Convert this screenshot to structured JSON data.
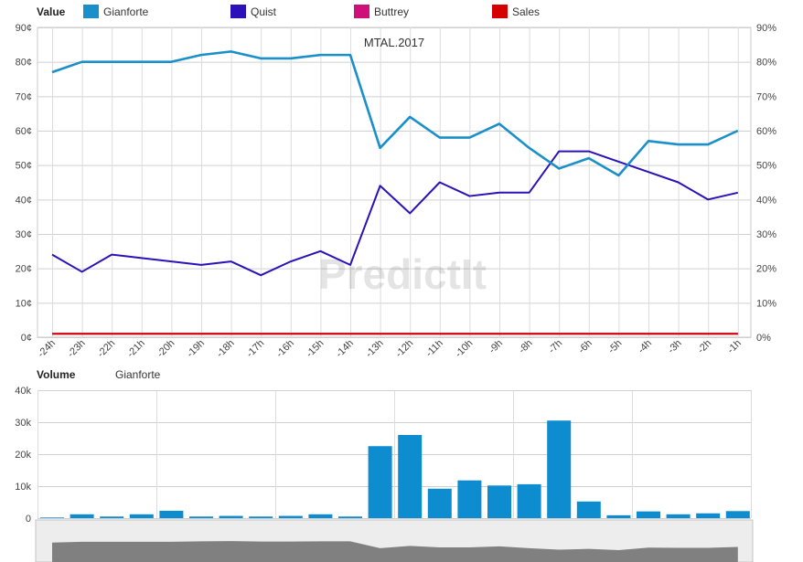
{
  "chart_data": [
    {
      "type": "line",
      "title": "MTAL.2017",
      "legend_title": "Value",
      "legend_position": "top",
      "watermark": "PredictIt",
      "categories": [
        "-24h",
        "-23h",
        "-22h",
        "-21h",
        "-20h",
        "-19h",
        "-18h",
        "-17h",
        "-16h",
        "-15h",
        "-14h",
        "-13h",
        "-12h",
        "-11h",
        "-10h",
        "-9h",
        "-8h",
        "-7h",
        "-6h",
        "-5h",
        "-4h",
        "-3h",
        "-2h",
        "-1h"
      ],
      "ylim": [
        0,
        90
      ],
      "yticks": [
        "0¢",
        "10¢",
        "20¢",
        "30¢",
        "40¢",
        "50¢",
        "60¢",
        "70¢",
        "80¢",
        "90¢"
      ],
      "y2ticks": [
        "0%",
        "10%",
        "20%",
        "30%",
        "40%",
        "50%",
        "60%",
        "70%",
        "80%",
        "90%"
      ],
      "grid": true,
      "series": [
        {
          "name": "Gianforte",
          "color": "#1a8fc9",
          "values": [
            77,
            80,
            80,
            80,
            80,
            82,
            83,
            81,
            81,
            82,
            82,
            55,
            64,
            58,
            58,
            62,
            55,
            49,
            52,
            47,
            57,
            56,
            56,
            60
          ]
        },
        {
          "name": "Quist",
          "color": "#2a12b8",
          "values": [
            24,
            19,
            24,
            23,
            22,
            21,
            22,
            18,
            22,
            25,
            21,
            44,
            36,
            45,
            41,
            42,
            42,
            54,
            54,
            51,
            48,
            45,
            40,
            42
          ]
        },
        {
          "name": "Buttrey",
          "color": "#d0107a",
          "values": [
            1,
            1,
            1,
            1,
            1,
            1,
            1,
            1,
            1,
            1,
            1,
            1,
            1,
            1,
            1,
            1,
            1,
            1,
            1,
            1,
            1,
            1,
            1,
            1
          ]
        },
        {
          "name": "Sales",
          "color": "#d40000",
          "values": [
            1,
            1,
            1,
            1,
            1,
            1,
            1,
            1,
            1,
            1,
            1,
            1,
            1,
            1,
            1,
            1,
            1,
            1,
            1,
            1,
            1,
            1,
            1,
            1
          ]
        }
      ]
    },
    {
      "type": "bar",
      "legend_title": "Volume",
      "series_name": "Gianforte",
      "color": "#0d8ccf",
      "ylim": [
        0,
        40000
      ],
      "yticks": [
        "0",
        "10k",
        "20k",
        "30k",
        "40k"
      ],
      "values": [
        200,
        1200,
        500,
        1200,
        2300,
        500,
        700,
        500,
        700,
        1200,
        500,
        22500,
        26000,
        9200,
        11800,
        10200,
        10600,
        30500,
        5200,
        900,
        2100,
        1200,
        1500,
        2200
      ]
    },
    {
      "type": "area",
      "role": "navigator",
      "color": "#808080",
      "values": [
        77,
        80,
        80,
        80,
        80,
        82,
        83,
        81,
        81,
        82,
        82,
        55,
        64,
        58,
        58,
        62,
        55,
        49,
        52,
        47,
        57,
        56,
        56,
        60
      ]
    }
  ]
}
